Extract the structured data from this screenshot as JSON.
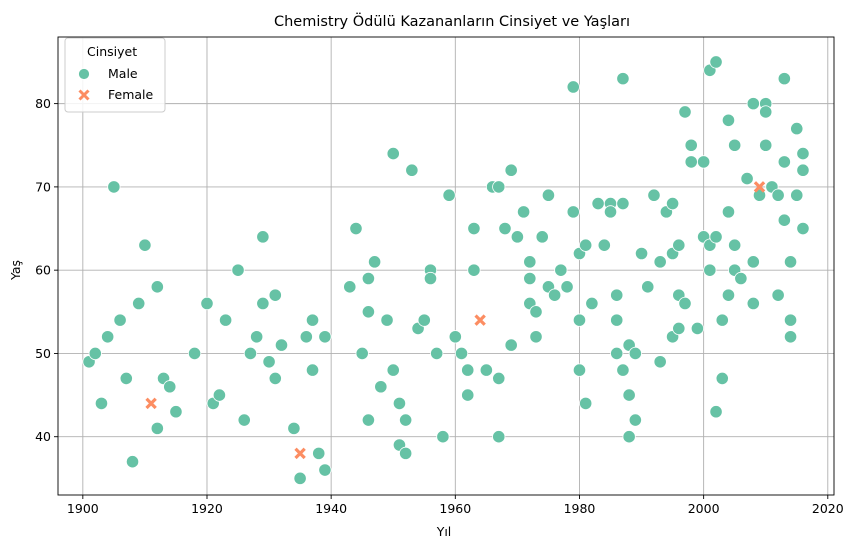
{
  "chart_data": {
    "type": "scatter",
    "title": "Chemistry Ödülü Kazananların Cinsiyet ve Yaşları",
    "xlabel": "Yıl",
    "ylabel": "Yaş",
    "xlim": [
      1896,
      2021
    ],
    "ylim": [
      33,
      88
    ],
    "xticks": [
      1900,
      1920,
      1940,
      1960,
      1980,
      2000,
      2020
    ],
    "yticks": [
      40,
      50,
      60,
      70,
      80
    ],
    "grid": true,
    "legend": {
      "title": "Cinsiyet",
      "placement": "top-left",
      "entries": [
        "Male",
        "Female"
      ]
    },
    "colors": {
      "Male": "#66c2a5",
      "Female": "#fc8d62"
    },
    "markers": {
      "Male": "circle",
      "Female": "x"
    },
    "series": [
      {
        "name": "Male",
        "points": [
          [
            1901,
            49
          ],
          [
            1902,
            50
          ],
          [
            1903,
            44
          ],
          [
            1904,
            52
          ],
          [
            1905,
            70
          ],
          [
            1906,
            54
          ],
          [
            1907,
            47
          ],
          [
            1908,
            37
          ],
          [
            1909,
            56
          ],
          [
            1910,
            63
          ],
          [
            1912,
            58
          ],
          [
            1912,
            41
          ],
          [
            1913,
            47
          ],
          [
            1914,
            46
          ],
          [
            1915,
            43
          ],
          [
            1918,
            50
          ],
          [
            1920,
            56
          ],
          [
            1921,
            44
          ],
          [
            1922,
            45
          ],
          [
            1923,
            54
          ],
          [
            1925,
            60
          ],
          [
            1926,
            42
          ],
          [
            1927,
            50
          ],
          [
            1928,
            52
          ],
          [
            1929,
            64
          ],
          [
            1929,
            56
          ],
          [
            1930,
            49
          ],
          [
            1931,
            57
          ],
          [
            1931,
            47
          ],
          [
            1932,
            51
          ],
          [
            1934,
            41
          ],
          [
            1935,
            35
          ],
          [
            1936,
            52
          ],
          [
            1937,
            54
          ],
          [
            1937,
            48
          ],
          [
            1938,
            38
          ],
          [
            1939,
            52
          ],
          [
            1939,
            36
          ],
          [
            1943,
            58
          ],
          [
            1944,
            65
          ],
          [
            1945,
            50
          ],
          [
            1946,
            59
          ],
          [
            1946,
            55
          ],
          [
            1946,
            42
          ],
          [
            1947,
            61
          ],
          [
            1948,
            46
          ],
          [
            1949,
            54
          ],
          [
            1950,
            74
          ],
          [
            1950,
            48
          ],
          [
            1951,
            44
          ],
          [
            1951,
            39
          ],
          [
            1952,
            42
          ],
          [
            1952,
            38
          ],
          [
            1953,
            72
          ],
          [
            1954,
            53
          ],
          [
            1955,
            54
          ],
          [
            1956,
            60
          ],
          [
            1956,
            59
          ],
          [
            1957,
            50
          ],
          [
            1958,
            40
          ],
          [
            1959,
            69
          ],
          [
            1960,
            52
          ],
          [
            1961,
            50
          ],
          [
            1962,
            48
          ],
          [
            1962,
            45
          ],
          [
            1963,
            65
          ],
          [
            1963,
            60
          ],
          [
            1965,
            48
          ],
          [
            1966,
            70
          ],
          [
            1967,
            70
          ],
          [
            1967,
            47
          ],
          [
            1967,
            40
          ],
          [
            1968,
            65
          ],
          [
            1969,
            72
          ],
          [
            1969,
            51
          ],
          [
            1970,
            64
          ],
          [
            1971,
            67
          ],
          [
            1972,
            61
          ],
          [
            1972,
            59
          ],
          [
            1972,
            56
          ],
          [
            1973,
            55
          ],
          [
            1973,
            52
          ],
          [
            1974,
            64
          ],
          [
            1975,
            69
          ],
          [
            1975,
            58
          ],
          [
            1976,
            57
          ],
          [
            1977,
            60
          ],
          [
            1978,
            58
          ],
          [
            1979,
            82
          ],
          [
            1979,
            67
          ],
          [
            1980,
            62
          ],
          [
            1980,
            54
          ],
          [
            1980,
            48
          ],
          [
            1981,
            63
          ],
          [
            1981,
            44
          ],
          [
            1982,
            56
          ],
          [
            1983,
            68
          ],
          [
            1984,
            63
          ],
          [
            1985,
            68
          ],
          [
            1985,
            67
          ],
          [
            1986,
            57
          ],
          [
            1986,
            54
          ],
          [
            1986,
            50
          ],
          [
            1987,
            83
          ],
          [
            1987,
            68
          ],
          [
            1987,
            48
          ],
          [
            1988,
            51
          ],
          [
            1988,
            45
          ],
          [
            1988,
            40
          ],
          [
            1989,
            50
          ],
          [
            1989,
            42
          ],
          [
            1990,
            62
          ],
          [
            1991,
            58
          ],
          [
            1992,
            69
          ],
          [
            1993,
            61
          ],
          [
            1993,
            49
          ],
          [
            1994,
            67
          ],
          [
            1995,
            68
          ],
          [
            1995,
            62
          ],
          [
            1995,
            52
          ],
          [
            1996,
            63
          ],
          [
            1996,
            57
          ],
          [
            1996,
            53
          ],
          [
            1997,
            79
          ],
          [
            1997,
            56
          ],
          [
            1998,
            75
          ],
          [
            1998,
            73
          ],
          [
            1999,
            53
          ],
          [
            2000,
            73
          ],
          [
            2000,
            64
          ],
          [
            2001,
            84
          ],
          [
            2001,
            63
          ],
          [
            2001,
            60
          ],
          [
            2002,
            85
          ],
          [
            2002,
            64
          ],
          [
            2002,
            43
          ],
          [
            2003,
            54
          ],
          [
            2003,
            47
          ],
          [
            2004,
            78
          ],
          [
            2004,
            67
          ],
          [
            2004,
            57
          ],
          [
            2005,
            75
          ],
          [
            2005,
            63
          ],
          [
            2005,
            60
          ],
          [
            2006,
            59
          ],
          [
            2007,
            71
          ],
          [
            2008,
            80
          ],
          [
            2008,
            61
          ],
          [
            2008,
            56
          ],
          [
            2009,
            69
          ],
          [
            2010,
            80
          ],
          [
            2010,
            79
          ],
          [
            2010,
            75
          ],
          [
            2011,
            70
          ],
          [
            2012,
            69
          ],
          [
            2012,
            57
          ],
          [
            2013,
            83
          ],
          [
            2013,
            73
          ],
          [
            2013,
            66
          ],
          [
            2014,
            61
          ],
          [
            2014,
            54
          ],
          [
            2014,
            52
          ],
          [
            2015,
            77
          ],
          [
            2015,
            69
          ],
          [
            2016,
            74
          ],
          [
            2016,
            72
          ],
          [
            2016,
            65
          ]
        ]
      },
      {
        "name": "Female",
        "points": [
          [
            1911,
            44
          ],
          [
            1935,
            38
          ],
          [
            1964,
            54
          ],
          [
            2009,
            70
          ]
        ]
      }
    ]
  }
}
